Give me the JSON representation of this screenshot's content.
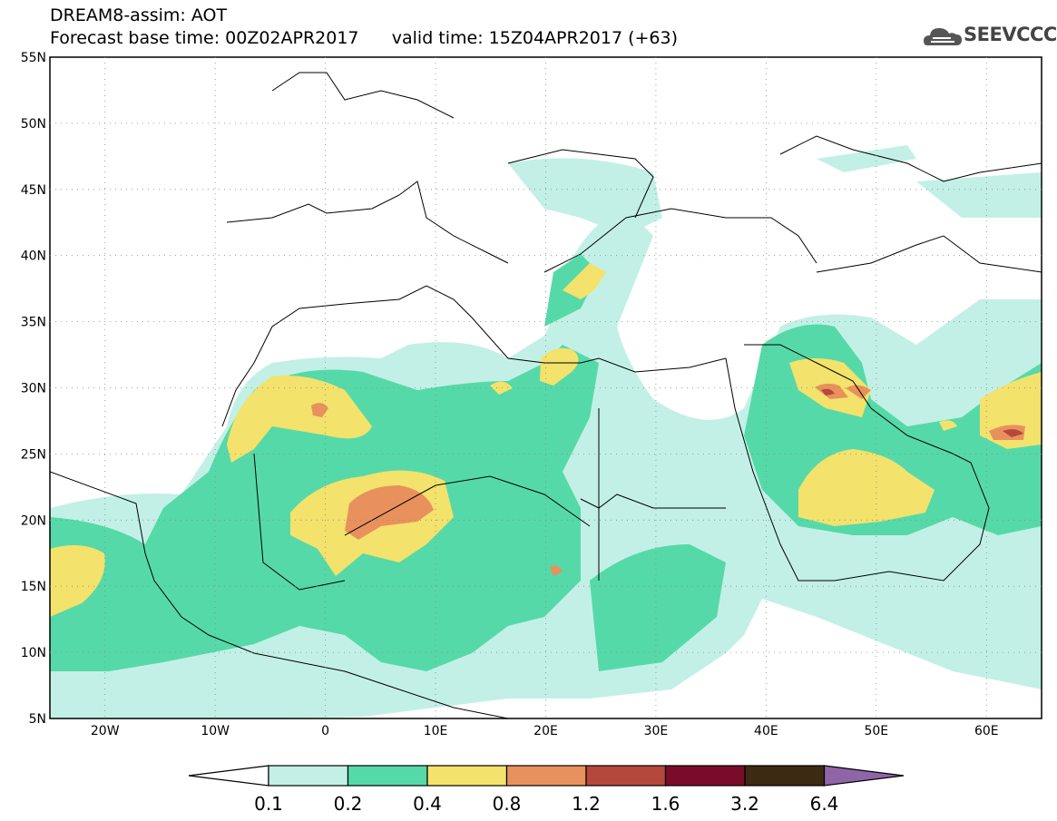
{
  "header": {
    "title": "DREAM8-assim: AOT",
    "forecast_base_time_label": "Forecast base time: 00Z02APR2017",
    "valid_time_label": "valid time: 15Z04APR2017 (+63)"
  },
  "logo": {
    "text": "SEEVCCC",
    "icon": "cloud-icon"
  },
  "map": {
    "lon_range": [
      -25,
      65
    ],
    "lat_range": [
      5,
      55
    ],
    "lat_ticks": [
      "5N",
      "10N",
      "15N",
      "20N",
      "25N",
      "30N",
      "35N",
      "40N",
      "45N",
      "50N",
      "55N"
    ],
    "lon_ticks": [
      "20W",
      "10W",
      "0",
      "10E",
      "20E",
      "30E",
      "40E",
      "50E",
      "60E"
    ]
  },
  "colorbar": {
    "labels": [
      "0.1",
      "0.2",
      "0.4",
      "0.8",
      "1.2",
      "1.6",
      "3.2",
      "6.4"
    ],
    "colors": [
      "#ffffff",
      "#c2f0e6",
      "#56d9a8",
      "#f3e26b",
      "#e8915d",
      "#b5473c",
      "#7a0c2a",
      "#3d2a13",
      "#8f65a8"
    ]
  }
}
